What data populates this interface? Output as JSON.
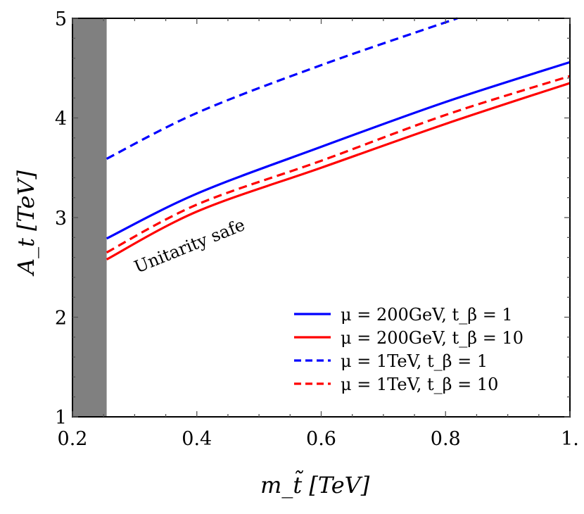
{
  "chart_data": {
    "type": "line",
    "xlabel": "m_t̃ [TeV]",
    "ylabel": "A_t [TeV]",
    "xlim": [
      0.2,
      1.0
    ],
    "ylim": [
      1,
      5
    ],
    "x_ticks": [
      "0.2",
      "0.4",
      "0.6",
      "0.8",
      "1."
    ],
    "y_ticks": [
      "1",
      "2",
      "3",
      "4",
      "5"
    ],
    "grid": false,
    "legend_position": "bottom-right",
    "excluded_region": {
      "x": [
        0.2,
        0.255
      ],
      "color": "#808080"
    },
    "annotation": "Unitarity safe",
    "series": [
      {
        "name": "μ = 200GeV, t_β = 1",
        "color": "#0000ff",
        "dashed": false,
        "x": [
          0.255,
          0.4,
          0.6,
          0.8,
          1.0
        ],
        "y": [
          2.79,
          3.24,
          3.71,
          4.16,
          4.56
        ]
      },
      {
        "name": "μ = 200GeV, t_β = 10",
        "color": "#ff0000",
        "dashed": false,
        "x": [
          0.255,
          0.4,
          0.6,
          0.8,
          1.0
        ],
        "y": [
          2.58,
          3.06,
          3.5,
          3.94,
          4.35
        ]
      },
      {
        "name": "μ = 1TeV, t_β = 1",
        "color": "#0000ff",
        "dashed": true,
        "x": [
          0.255,
          0.4,
          0.6,
          0.819
        ],
        "y": [
          3.59,
          4.05,
          4.53,
          5.0
        ]
      },
      {
        "name": "μ = 1TeV, t_β = 10",
        "color": "#ff0000",
        "dashed": true,
        "x": [
          0.255,
          0.4,
          0.6,
          0.8,
          1.0
        ],
        "y": [
          2.65,
          3.13,
          3.57,
          4.03,
          4.42
        ]
      }
    ]
  }
}
